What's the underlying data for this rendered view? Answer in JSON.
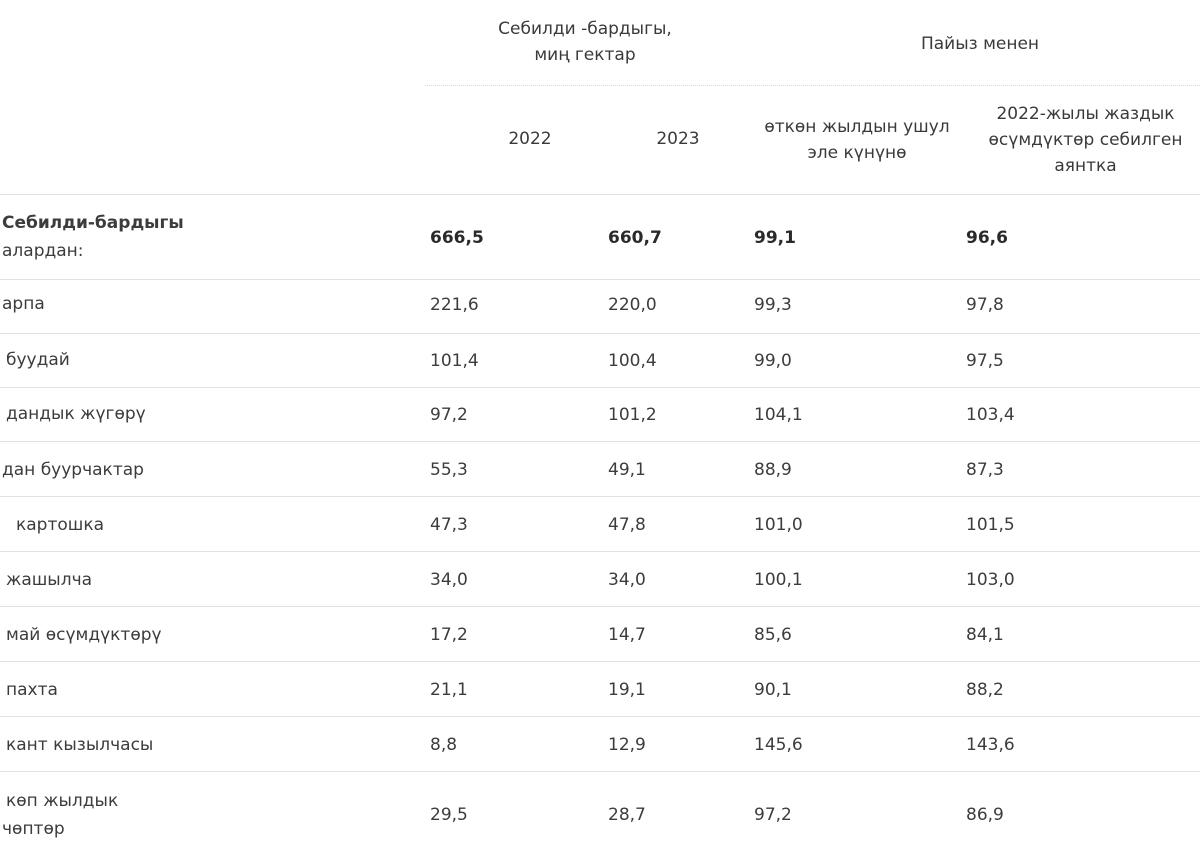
{
  "header": {
    "area_group": "Себилди -бардыгы, миң гектар",
    "percent_group": "Пайыз менен",
    "col_2022": "2022",
    "col_2023": "2023",
    "col_prev_year": "өткөн жылдын ушул эле күнүнө",
    "col_2022_spring": "2022-жылы жаздык өсүмдүктөр себилген аянтка"
  },
  "rows": [
    {
      "label": "Себилди-бардыгы",
      "sublabel": "алардан:",
      "v2022": "666,5",
      "v2023": "660,7",
      "prev": "99,1",
      "spring": "96,6"
    },
    {
      "label": "арпа",
      "v2022": "221,6",
      "v2023": "220,0",
      "prev": "99,3",
      "spring": "97,8"
    },
    {
      "label": "буудай",
      "v2022": "101,4",
      "v2023": "100,4",
      "prev": "99,0",
      "spring": "97,5"
    },
    {
      "label": "дандык жүгөрү",
      "v2022": "97,2",
      "v2023": "101,2",
      "prev": "104,1",
      "spring": "103,4"
    },
    {
      "label": "дан буурчактар",
      "v2022": "55,3",
      "v2023": "49,1",
      "prev": "88,9",
      "spring": "87,3"
    },
    {
      "label": "картошка",
      "v2022": "47,3",
      "v2023": "47,8",
      "prev": "101,0",
      "spring": "101,5"
    },
    {
      "label": "жашылча",
      "v2022": "34,0",
      "v2023": "34,0",
      "prev": "100,1",
      "spring": "103,0"
    },
    {
      "label": "май өсүмдүктөрү",
      "v2022": "17,2",
      "v2023": "14,7",
      "prev": "85,6",
      "spring": "84,1"
    },
    {
      "label": "пахта",
      "v2022": "21,1",
      "v2023": "19,1",
      "prev": "90,1",
      "spring": "88,2"
    },
    {
      "label": "кант кызылчасы",
      "v2022": "8,8",
      "v2023": "12,9",
      "prev": "145,6",
      "spring": "143,6"
    },
    {
      "label": "көп жылдык",
      "sublabel": "чөптөр",
      "v2022": "29,5",
      "v2023": "28,7",
      "prev": "97,2",
      "spring": "86,9"
    }
  ]
}
